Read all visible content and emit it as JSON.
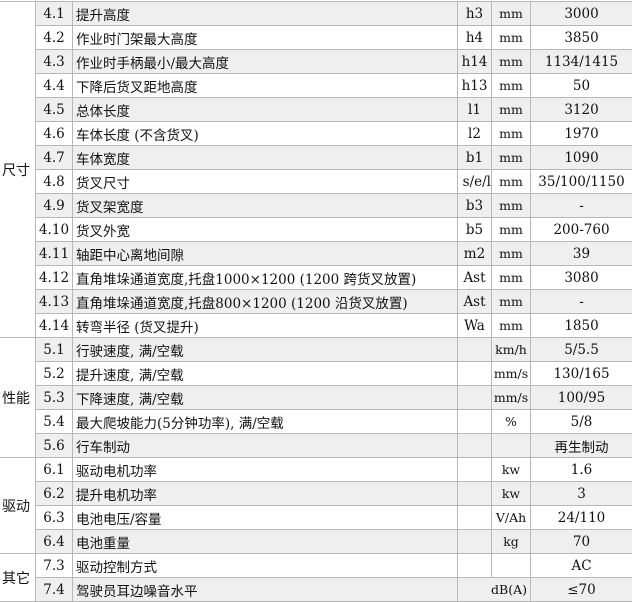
{
  "categories": [
    "尺寸",
    "性能",
    "驱动",
    "其它"
  ],
  "rows": [
    {
      "no": "4.1",
      "desc": "提升高度",
      "sym": "h3",
      "unit": "mm",
      "val": "3000"
    },
    {
      "no": "4.2",
      "desc": "作业时门架最大高度",
      "sym": "h4",
      "unit": "mm",
      "val": "3850"
    },
    {
      "no": "4.3",
      "desc": "作业时手柄最小/最大高度",
      "sym": "h14",
      "unit": "mm",
      "val": "1134/1415"
    },
    {
      "no": "4.4",
      "desc": "下降后货叉距地高度",
      "sym": "h13",
      "unit": "mm",
      "val": "50"
    },
    {
      "no": "4.5",
      "desc": "总体长度",
      "sym": "l1",
      "unit": "mm",
      "val": "3120"
    },
    {
      "no": "4.6",
      "desc": "车体长度 (不含货叉)",
      "sym": "l2",
      "unit": "mm",
      "val": "1970"
    },
    {
      "no": "4.7",
      "desc": "车体宽度",
      "sym": "b1",
      "unit": "mm",
      "val": "1090"
    },
    {
      "no": "4.8",
      "desc": "货叉尺寸",
      "sym": "s/e/l",
      "unit": "mm",
      "val": "35/100/1150"
    },
    {
      "no": "4.9",
      "desc": "货叉架宽度",
      "sym": "b3",
      "unit": "mm",
      "val": "-"
    },
    {
      "no": "4.10",
      "desc": "货叉外宽",
      "sym": "b5",
      "unit": "mm",
      "val": "200-760"
    },
    {
      "no": "4.11",
      "desc": "轴距中心离地间隙",
      "sym": "m2",
      "unit": "mm",
      "val": "39"
    },
    {
      "no": "4.12",
      "desc": "直角堆垛通道宽度,托盘1000×1200 (1200 跨货叉放置)",
      "sym": "Ast",
      "unit": "mm",
      "val": "3080"
    },
    {
      "no": "4.13",
      "desc": "直角堆垛通道宽度,托盘800×1200 (1200 沿货叉放置)",
      "sym": "Ast",
      "unit": "mm",
      "val": "-"
    },
    {
      "no": "4.14",
      "desc": "转弯半径 (货叉提升)",
      "sym": "Wa",
      "unit": "mm",
      "val": "1850"
    },
    {
      "no": "5.1",
      "desc": "行驶速度, 满/空载",
      "sym": "",
      "unit": "km/h",
      "val": "5/5.5"
    },
    {
      "no": "5.2",
      "desc": "提升速度, 满/空载",
      "sym": "",
      "unit": "mm/s",
      "val": "130/165"
    },
    {
      "no": "5.3",
      "desc": "下降速度, 满/空载",
      "sym": "",
      "unit": "mm/s",
      "val": "100/95"
    },
    {
      "no": "5.4",
      "desc": "最大爬坡能力(5分钟功率), 满/空载",
      "sym": "",
      "unit": "%",
      "val": "5/8"
    },
    {
      "no": "5.6",
      "desc": "行车制动",
      "sym": "",
      "unit": "",
      "val": "再生制动"
    },
    {
      "no": "6.1",
      "desc": "驱动电机功率",
      "sym": "",
      "unit": "kw",
      "val": "1.6"
    },
    {
      "no": "6.2",
      "desc": "提升电机功率",
      "sym": "",
      "unit": "kw",
      "val": "3"
    },
    {
      "no": "6.3",
      "desc": "电池电压/容量",
      "sym": "",
      "unit": "V/Ah",
      "val": "24/110"
    },
    {
      "no": "6.4",
      "desc": "电池重量",
      "sym": "",
      "unit": "kg",
      "val": "70"
    },
    {
      "no": "7.3",
      "desc": "驱动控制方式",
      "sym": "",
      "unit": "",
      "val": "AC"
    },
    {
      "no": "7.4",
      "desc": "驾驶员耳边噪音水平",
      "sym": "",
      "unit": "dB(A)",
      "val": "≤70"
    }
  ]
}
